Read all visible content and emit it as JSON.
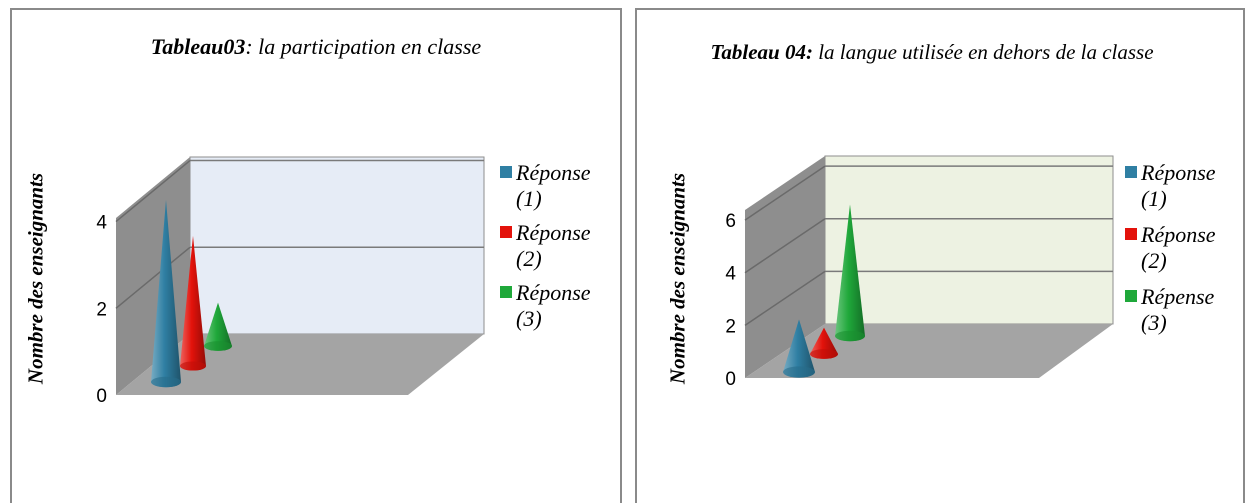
{
  "charts": [
    {
      "title_bold": "Tableau03",
      "title_rest": ": la participation en classe",
      "ylabel": "Nombre des enseignants",
      "legend": [
        "Réponse (1)",
        "Réponse (2)",
        "Réponse (3)"
      ]
    },
    {
      "title_bold": "Tableau 04:",
      "title_rest": " la langue utilisée en dehors de la classe",
      "ylabel": "Nombre des enseignants",
      "legend": [
        "Réponse (1)",
        "Réponse (2)",
        "Répense (3)"
      ]
    }
  ],
  "chart_data": [
    {
      "type": "bar",
      "title": "Tableau03: la participation en classe",
      "ylabel": "Nombre des enseignants",
      "ylim": [
        0,
        4
      ],
      "yticks": [
        0,
        2,
        4
      ],
      "grid": true,
      "legend_position": "right",
      "series": [
        {
          "name": "Réponse (1)",
          "values": [
            4.2
          ],
          "color": "#2f7fa3"
        },
        {
          "name": "Réponse (2)",
          "values": [
            3.0
          ],
          "color": "#e3120b"
        },
        {
          "name": "Réponse (3)",
          "values": [
            1.0
          ],
          "color": "#1fa83a"
        }
      ]
    },
    {
      "type": "bar",
      "title": "Tableau 04: la langue utilisée en dehors de la classe",
      "ylabel": "Nombre des enseignants",
      "ylim": [
        0,
        6
      ],
      "yticks": [
        0,
        2,
        4,
        6
      ],
      "grid": true,
      "legend_position": "right",
      "series": [
        {
          "name": "Réponse (1)",
          "values": [
            2.0
          ],
          "color": "#2f7fa3"
        },
        {
          "name": "Réponse (2)",
          "values": [
            1.0
          ],
          "color": "#e3120b"
        },
        {
          "name": "Répense (3)",
          "values": [
            5.0
          ],
          "color": "#1fa83a"
        }
      ]
    }
  ]
}
